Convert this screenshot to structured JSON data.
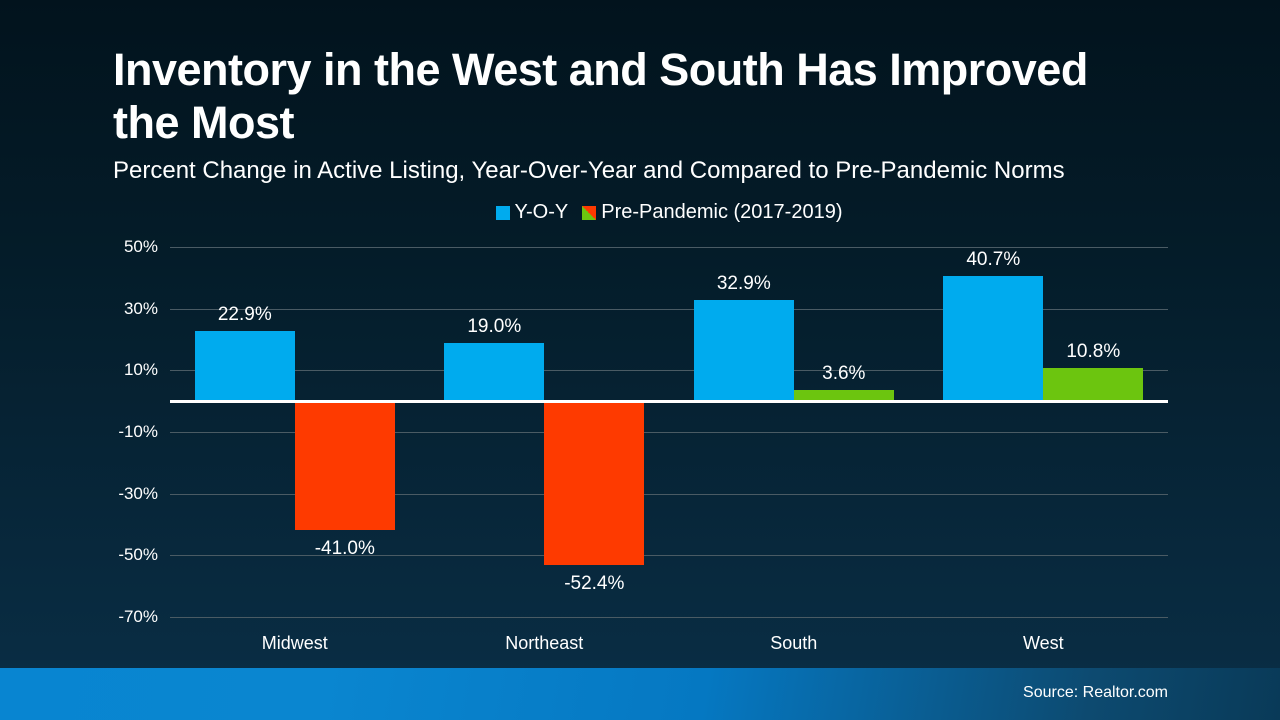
{
  "title": "Inventory in the West and South Has Improved the Most",
  "subtitle": "Percent Change in Active Listing, Year-Over-Year and Compared to Pre-Pandemic Norms",
  "source": "Source: Realtor.com",
  "colors": {
    "background_top": "#02131d",
    "background_bottom": "#0a2f47",
    "yoy_blue": "#00abee",
    "prepandemic_positive_green": "#6cc50f",
    "prepandemic_negative_red": "#fe3a00",
    "gridline": "#4a5b64",
    "zero_axis": "#ffffff",
    "footer_blue_left": "#0885d1",
    "footer_blue_right": "#093a58",
    "text": "#ffffff"
  },
  "chart_data": {
    "type": "bar",
    "title": "Inventory in the West and South Has Improved the Most",
    "subtitle": "Percent Change in Active Listing, Year-Over-Year and Compared to Pre-Pandemic Norms",
    "categories": [
      "Midwest",
      "Northeast",
      "South",
      "West"
    ],
    "series": [
      {
        "name": "Y-O-Y",
        "color": "#00abee",
        "values": [
          22.9,
          19.0,
          32.9,
          40.7
        ],
        "labels": [
          "22.9%",
          "19.0%",
          "32.9%",
          "40.7%"
        ]
      },
      {
        "name": "Pre-Pandemic (2017-2019)",
        "color_positive": "#6cc50f",
        "color_negative": "#fe3a00",
        "values": [
          -41.0,
          -52.4,
          3.6,
          10.8
        ],
        "labels": [
          "-41.0%",
          "-52.4%",
          "3.6%",
          "10.8%"
        ]
      }
    ],
    "yticks": [
      50,
      30,
      10,
      -10,
      -30,
      -50,
      -70
    ],
    "ytick_labels": [
      "50%",
      "30%",
      "10%",
      "-10%",
      "-30%",
      "-50%",
      "-70%"
    ],
    "ylim": [
      -70,
      50
    ],
    "value_suffix": "%",
    "grid": true,
    "legend_position": "top-center",
    "xlabel": "",
    "ylabel": ""
  }
}
